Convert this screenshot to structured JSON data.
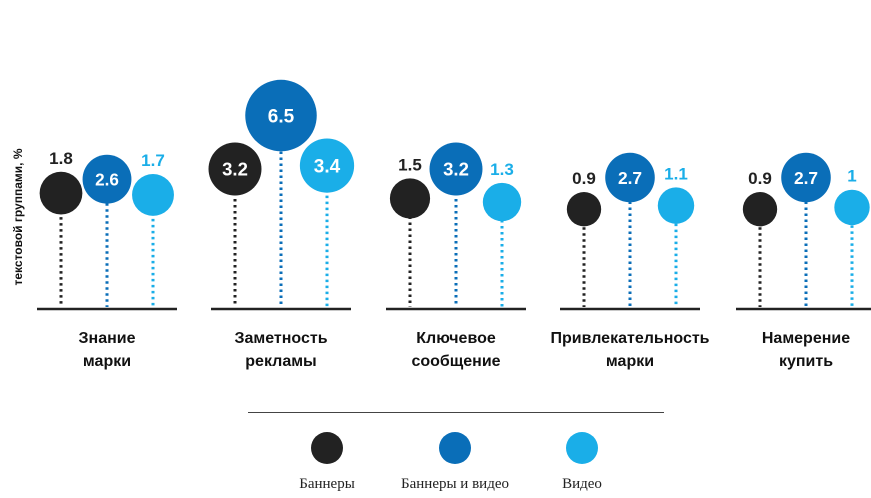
{
  "chart_data": {
    "type": "lollipop",
    "ylabel": "текстовой группами, %",
    "categories": [
      [
        "Знание",
        "марки"
      ],
      [
        "Заметность",
        "рекламы"
      ],
      [
        "Ключевое",
        "сообщение"
      ],
      [
        "Привлекательность",
        "марки"
      ],
      [
        "Намерение",
        "купить"
      ]
    ],
    "series": [
      {
        "name": "Баннеры",
        "color": "#222222",
        "values": [
          1.8,
          3.2,
          1.5,
          0.9,
          0.9
        ]
      },
      {
        "name": "Баннеры и видео",
        "color": "#0a6eb8",
        "values": [
          2.6,
          6.5,
          3.2,
          2.7,
          2.7
        ]
      },
      {
        "name": "Видео",
        "color": "#1aaee8",
        "values": [
          1.7,
          3.4,
          1.3,
          1.1,
          1
        ]
      }
    ],
    "value_labels": [
      [
        "1.8",
        "3.2",
        "1.5",
        "0.9",
        "0.9"
      ],
      [
        "2.6",
        "6.5",
        "3.2",
        "2.7",
        "2.7"
      ],
      [
        "1.7",
        "3.4",
        "1.3",
        "1.1",
        "1"
      ]
    ],
    "label_placement": [
      [
        "above",
        "inside",
        "above",
        "above",
        "above"
      ],
      [
        "inside",
        "inside",
        "inside",
        "inside",
        "inside"
      ],
      [
        "above",
        "inside",
        "above",
        "above",
        "above"
      ]
    ],
    "grid": false,
    "legend_position": "bottom"
  }
}
